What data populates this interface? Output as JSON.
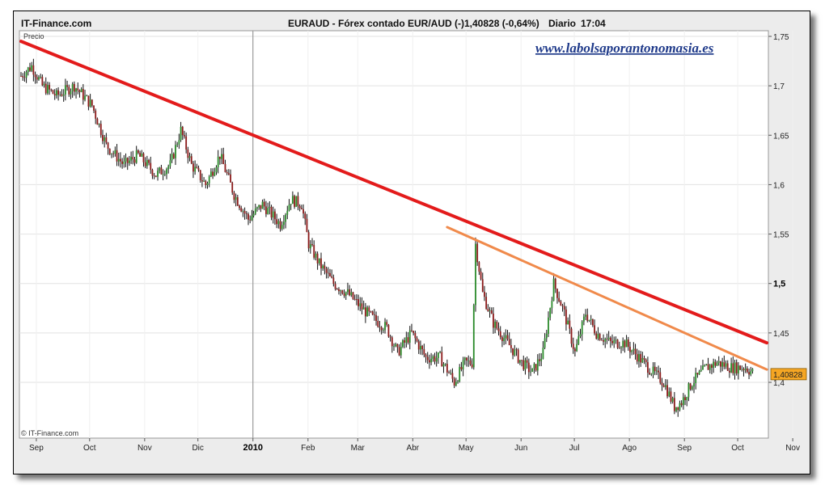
{
  "header": {
    "site": "IT-Finance.com",
    "title": "EURAUD - Fórex contado EUR/AUD (-)",
    "price_change": "1,40828 (-0,64%)",
    "period": "Diario",
    "time": "17:04"
  },
  "watermark": "www.labolsaporantonomasia.es",
  "copyright": "© IT-Finance.com",
  "colors": {
    "main_trendline": "#e31b1b",
    "secondary_trendline": "#f08a4b",
    "up_bar": "#2a8a2a",
    "down_bar": "#8b1a1a",
    "price_tag": "#f5a623"
  },
  "chart_data": {
    "type": "ohlc",
    "ylabel": "Precio",
    "ylim": [
      1.36,
      1.76
    ],
    "yticks": [
      "1,75",
      "1,7",
      "1,65",
      "1,6",
      "1,55",
      "1,5",
      "1,45",
      "1,4"
    ],
    "yticks_bold": [
      "1,5"
    ],
    "xticks": [
      "Sep",
      "Oct",
      "Nov",
      "Dic",
      "2010",
      "Feb",
      "Mar",
      "Abr",
      "May",
      "Jun",
      "Jul",
      "Ago",
      "Sep",
      "Oct",
      "Nov"
    ],
    "xticks_bold": [
      "2010"
    ],
    "last_price": "1,40828",
    "price_path": [
      [
        0,
        1.71
      ],
      [
        6,
        1.72
      ],
      [
        12,
        1.7
      ],
      [
        20,
        1.69
      ],
      [
        30,
        1.7
      ],
      [
        40,
        1.68
      ],
      [
        48,
        1.64
      ],
      [
        58,
        1.62
      ],
      [
        66,
        1.63
      ],
      [
        76,
        1.61
      ],
      [
        84,
        1.62
      ],
      [
        90,
        1.655
      ],
      [
        96,
        1.62
      ],
      [
        104,
        1.6
      ],
      [
        112,
        1.63
      ],
      [
        120,
        1.59
      ],
      [
        128,
        1.565
      ],
      [
        136,
        1.58
      ],
      [
        146,
        1.56
      ],
      [
        152,
        1.585
      ],
      [
        158,
        1.58
      ],
      [
        162,
        1.54
      ],
      [
        168,
        1.52
      ],
      [
        176,
        1.5
      ],
      [
        184,
        1.49
      ],
      [
        192,
        1.475
      ],
      [
        198,
        1.465
      ],
      [
        206,
        1.455
      ],
      [
        212,
        1.43
      ],
      [
        220,
        1.45
      ],
      [
        228,
        1.425
      ],
      [
        236,
        1.425
      ],
      [
        244,
        1.4
      ],
      [
        250,
        1.42
      ],
      [
        254,
        1.42
      ],
      [
        256,
        1.54
      ],
      [
        260,
        1.49
      ],
      [
        266,
        1.46
      ],
      [
        274,
        1.44
      ],
      [
        282,
        1.42
      ],
      [
        288,
        1.41
      ],
      [
        294,
        1.43
      ],
      [
        300,
        1.5
      ],
      [
        306,
        1.47
      ],
      [
        312,
        1.43
      ],
      [
        318,
        1.47
      ],
      [
        324,
        1.45
      ],
      [
        332,
        1.44
      ],
      [
        340,
        1.44
      ],
      [
        348,
        1.425
      ],
      [
        356,
        1.41
      ],
      [
        362,
        1.4
      ],
      [
        368,
        1.375
      ],
      [
        372,
        1.38
      ],
      [
        378,
        1.4
      ],
      [
        386,
        1.415
      ],
      [
        392,
        1.42
      ],
      [
        400,
        1.415
      ],
      [
        408,
        1.415
      ],
      [
        412,
        1.41
      ]
    ],
    "price_path_end_day": 412,
    "trendlines": [
      {
        "from": [
          0,
          1.745
        ],
        "to": [
          420,
          1.44
        ]
      },
      {
        "from": [
          240,
          1.557
        ],
        "to": [
          420,
          1.413
        ]
      }
    ]
  }
}
